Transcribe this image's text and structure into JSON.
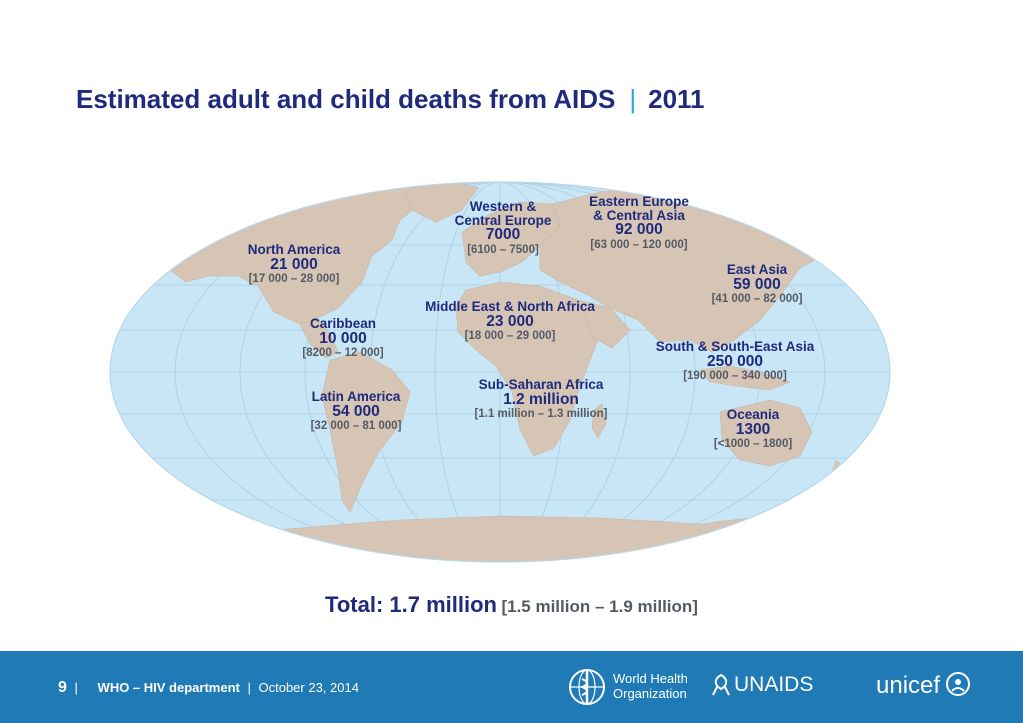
{
  "slide": {
    "title": "Estimated adult and child deaths from AIDS",
    "title_separator": "|",
    "title_year": "2011"
  },
  "regions": [
    {
      "name": "North America",
      "value": "21 000",
      "range": "[17 000 – 28 000]"
    },
    {
      "name": "Caribbean",
      "value": "10 000",
      "range": "[8200 – 12 000]"
    },
    {
      "name": "Latin America",
      "value": "54 000",
      "range": "[32 000 – 81 000]"
    },
    {
      "name_line1": "Western &",
      "name_line2": "Central Europe",
      "value": "7000",
      "range": "[6100 – 7500]"
    },
    {
      "name_line1": "Eastern Europe",
      "name_line2": "& Central Asia",
      "value": "92 000",
      "range": "[63 000 – 120 000]"
    },
    {
      "name": "Middle East & North Africa",
      "value": "23 000",
      "range": "[18 000 – 29 000]"
    },
    {
      "name": "Sub-Saharan Africa",
      "value": "1.2 million",
      "range": "[1.1 million – 1.3 million]"
    },
    {
      "name": "East Asia",
      "value": "59 000",
      "range": "[41 000 – 82 000]"
    },
    {
      "name": "South & South-East Asia",
      "value": "250 000",
      "range": "[190 000 – 340 000]"
    },
    {
      "name": "Oceania",
      "value": "1300",
      "range": "[<1000 – 1800]"
    }
  ],
  "total": {
    "label": "Total: 1.7 million",
    "range": "[1.5 million – 1.9 million]"
  },
  "footer": {
    "page_number": "9",
    "separator": "|",
    "department": "WHO – HIV department",
    "date": "October 23, 2014",
    "background_color": "#1f7ab6"
  },
  "logos": {
    "who_line1": "World Health",
    "who_line2": "Organization",
    "unaids": "UNAIDS",
    "unicef": "unicef"
  },
  "colors": {
    "title": "#1f2a7c",
    "accent": "#2aa6dc",
    "ocean": "#c9e6f6",
    "land": "#d6c5b5"
  }
}
